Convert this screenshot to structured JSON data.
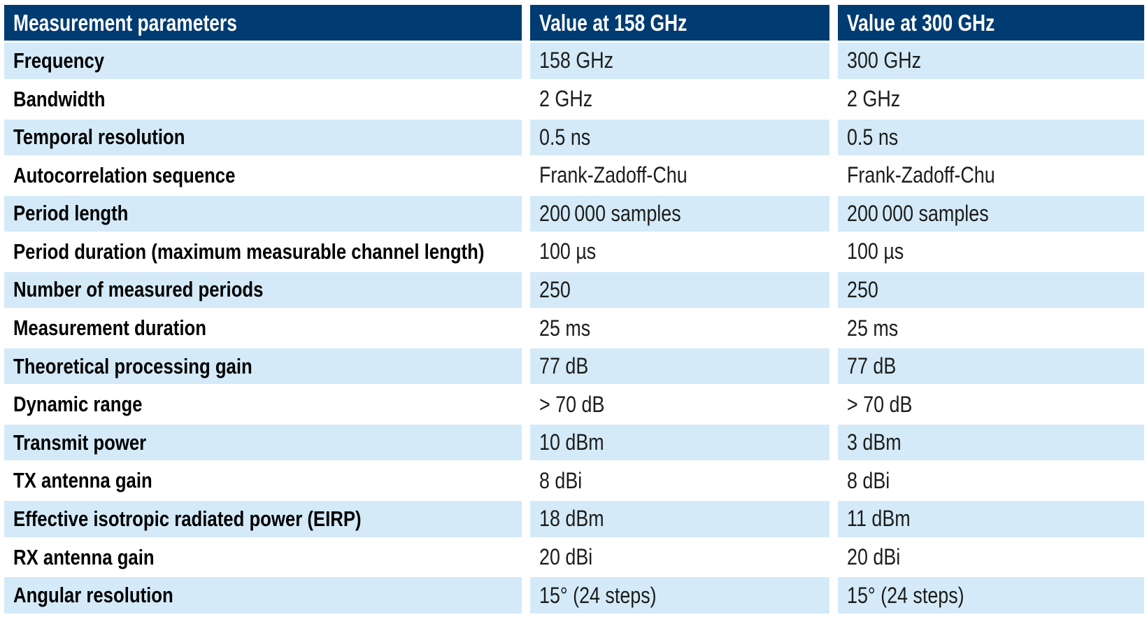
{
  "table": {
    "headers": [
      "Measurement parameters",
      "Value at 158 GHz",
      "Value at 300 GHz"
    ],
    "rows": [
      {
        "label": "Frequency",
        "v158": "158 GHz",
        "v300": "300 GHz"
      },
      {
        "label": "Bandwidth",
        "v158": "2 GHz",
        "v300": "2 GHz"
      },
      {
        "label": "Temporal resolution",
        "v158": "0.5 ns",
        "v300": "0.5 ns"
      },
      {
        "label": "Autocorrelation sequence",
        "v158": "Frank-Zadoff-Chu",
        "v300": "Frank-Zadoff-Chu"
      },
      {
        "label": "Period length",
        "v158": "200 000 samples",
        "v300": "200 000 samples"
      },
      {
        "label": "Period duration (maximum measurable channel length)",
        "v158": "100 µs",
        "v300": "100 µs"
      },
      {
        "label": "Number of measured periods",
        "v158": "250",
        "v300": "250"
      },
      {
        "label": "Measurement duration",
        "v158": "25 ms",
        "v300": "25 ms"
      },
      {
        "label": "Theoretical processing gain",
        "v158": "77 dB",
        "v300": "77 dB"
      },
      {
        "label": "Dynamic range",
        "v158": "> 70 dB",
        "v300": "> 70 dB"
      },
      {
        "label": "Transmit power",
        "v158": "10 dBm",
        "v300": "3 dBm"
      },
      {
        "label": "TX antenna gain",
        "v158": "8 dBi",
        "v300": "8 dBi"
      },
      {
        "label": "Effective isotropic radiated power (EIRP)",
        "v158": "18 dBm",
        "v300": "11 dBm"
      },
      {
        "label": "RX antenna gain",
        "v158": "20 dBi",
        "v300": "20 dBi"
      },
      {
        "label": "Angular resolution",
        "v158": "15° (24 steps)",
        "v300": "15° (24 steps)"
      }
    ]
  },
  "colors": {
    "header_bg": "#003b71",
    "header_text": "#ffffff",
    "row_alt_bg": "#d4eaf9",
    "row_plain_bg": "#ffffff",
    "label_text": "#000000",
    "value_text": "#1d1d1b"
  },
  "chart_data": {
    "type": "table",
    "title": "Measurement parameters",
    "columns": [
      "Measurement parameters",
      "Value at 158 GHz",
      "Value at 300 GHz"
    ],
    "rows": [
      [
        "Frequency",
        "158 GHz",
        "300 GHz"
      ],
      [
        "Bandwidth",
        "2 GHz",
        "2 GHz"
      ],
      [
        "Temporal resolution",
        "0.5 ns",
        "0.5 ns"
      ],
      [
        "Autocorrelation sequence",
        "Frank-Zadoff-Chu",
        "Frank-Zadoff-Chu"
      ],
      [
        "Period length",
        "200 000 samples",
        "200 000 samples"
      ],
      [
        "Period duration (maximum measurable channel length)",
        "100 µs",
        "100 µs"
      ],
      [
        "Number of measured periods",
        "250",
        "250"
      ],
      [
        "Measurement duration",
        "25 ms",
        "25 ms"
      ],
      [
        "Theoretical processing gain",
        "77 dB",
        "77 dB"
      ],
      [
        "Dynamic range",
        "> 70 dB",
        "> 70 dB"
      ],
      [
        "Transmit power",
        "10 dBm",
        "3 dBm"
      ],
      [
        "TX antenna gain",
        "8 dBi",
        "8 dBi"
      ],
      [
        "Effective isotropic radiated power (EIRP)",
        "18 dBm",
        "11 dBm"
      ],
      [
        "RX antenna gain",
        "20 dBi",
        "20 dBi"
      ],
      [
        "Angular resolution",
        "15° (24 steps)",
        "15° (24 steps)"
      ]
    ],
    "layout": {
      "row_striping": "alternating light-blue / white, starting light-blue",
      "header_style": "dark navy band with white bold text",
      "grid": "white gutters between columns, no borders"
    }
  }
}
